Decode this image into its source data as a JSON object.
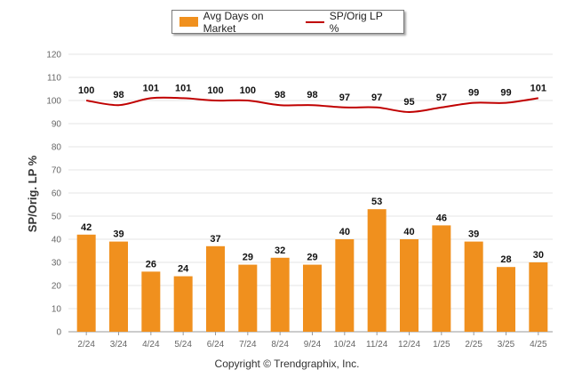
{
  "legend": {
    "bar_label": "Avg Days on Market",
    "line_label": "SP/Orig LP %"
  },
  "footer": {
    "copyright": "Copyright © Trendgraphix, Inc."
  },
  "colors": {
    "bar": "#f0901e",
    "line": "#c00000",
    "grid": "#e6e6e6",
    "axis": "#999999"
  },
  "chart_data": {
    "type": "bar",
    "title": "",
    "xlabel": "",
    "ylabel": "SP/Orig. LP %",
    "ylim": [
      0,
      120
    ],
    "yticks": [
      0,
      10,
      20,
      30,
      40,
      50,
      60,
      70,
      80,
      90,
      100,
      110,
      120
    ],
    "grid": true,
    "legend_position": "top",
    "categories": [
      "2/24",
      "3/24",
      "4/24",
      "5/24",
      "6/24",
      "7/24",
      "8/24",
      "9/24",
      "10/24",
      "11/24",
      "12/24",
      "1/25",
      "2/25",
      "3/25",
      "4/25"
    ],
    "series": [
      {
        "name": "Avg Days on Market",
        "type": "bar",
        "values": [
          42,
          39,
          26,
          24,
          37,
          29,
          32,
          29,
          40,
          53,
          40,
          46,
          39,
          28,
          30
        ]
      },
      {
        "name": "SP/Orig LP %",
        "type": "line",
        "values": [
          100,
          98,
          101,
          101,
          100,
          100,
          98,
          98,
          97,
          97,
          95,
          97,
          99,
          99,
          101
        ]
      }
    ]
  }
}
